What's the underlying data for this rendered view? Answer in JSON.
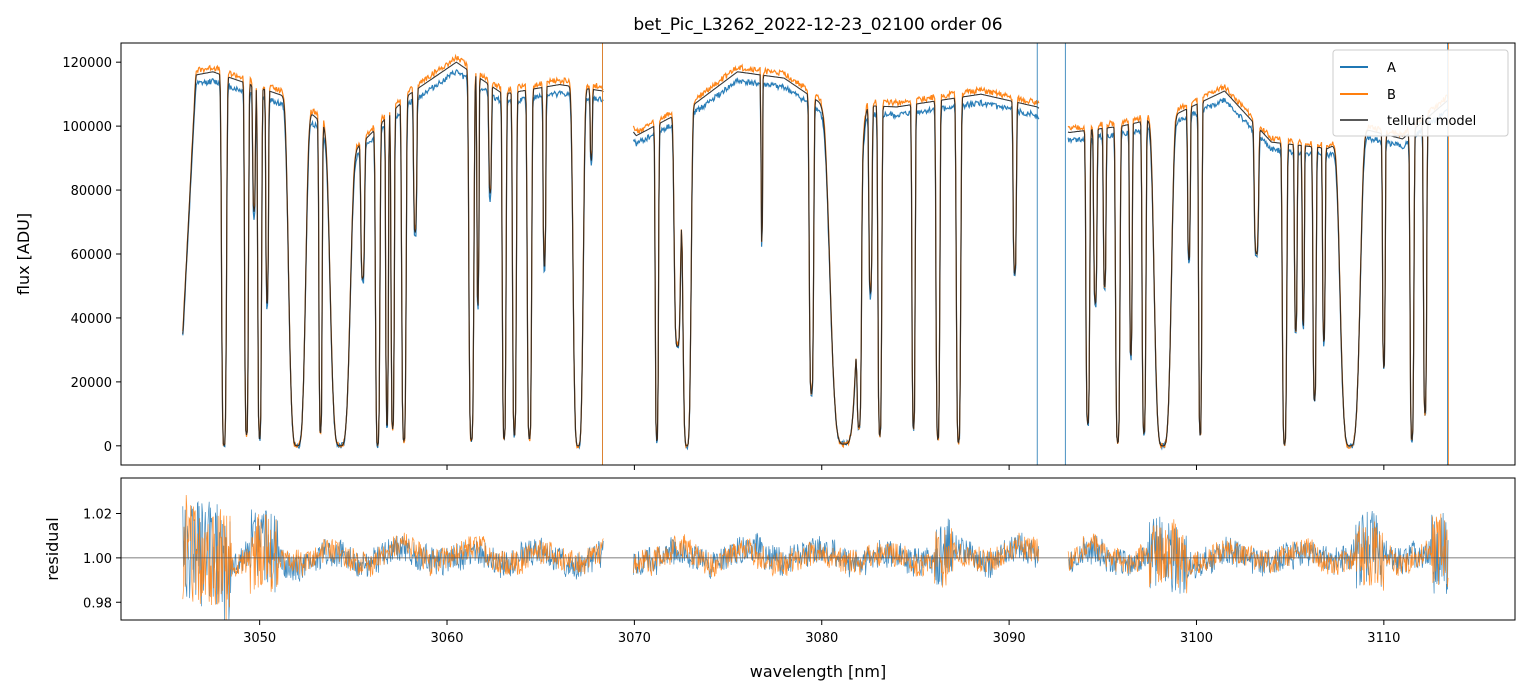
{
  "chart_data": [
    {
      "id": "flux",
      "type": "line",
      "title": "bet_Pic_L3262_2022-12-23_02100  order 06",
      "xlabel": "",
      "ylabel": "flux [ADU]",
      "xlim": [
        3042.6,
        3117.0
      ],
      "ylim": [
        -6000,
        126000
      ],
      "yticks": [
        0,
        20000,
        40000,
        60000,
        80000,
        100000,
        120000
      ],
      "ytick_labels": [
        "0",
        "20000",
        "40000",
        "60000",
        "80000",
        "100000",
        "120000"
      ],
      "xticks": [
        3050,
        3060,
        3070,
        3080,
        3090,
        3100,
        3110
      ],
      "legend_position": "top-right",
      "series": [
        {
          "name": "A",
          "color": "#1f77b4",
          "scale": 0.975,
          "noise": 900,
          "seed": 11
        },
        {
          "name": "B",
          "color": "#ff7f0e",
          "scale": 1.012,
          "noise": 900,
          "seed": 23
        },
        {
          "name": "telluric model",
          "color": "#222222",
          "scale": 1.0,
          "noise": 0,
          "seed": 0
        }
      ],
      "continuum": [
        [
          3045.9,
          35000
        ],
        [
          3046.6,
          116000
        ],
        [
          3047.5,
          117000
        ],
        [
          3052,
          108000
        ],
        [
          3055,
          92000
        ],
        [
          3058,
          110000
        ],
        [
          3060.5,
          120000
        ],
        [
          3063,
          110000
        ],
        [
          3066,
          113000
        ],
        [
          3068.3,
          111000
        ],
        [
          3070.1,
          97000
        ],
        [
          3073,
          106000
        ],
        [
          3075.5,
          117000
        ],
        [
          3078,
          115000
        ],
        [
          3080,
          107000
        ],
        [
          3084,
          106000
        ],
        [
          3088.5,
          110000
        ],
        [
          3091.5,
          106000
        ],
        [
          3093.2,
          98000
        ],
        [
          3096,
          100000
        ],
        [
          3099,
          104000
        ],
        [
          3101.5,
          111000
        ],
        [
          3104,
          95000
        ],
        [
          3107,
          93000
        ],
        [
          3109,
          99000
        ],
        [
          3111,
          96000
        ],
        [
          3113.4,
          108000
        ]
      ],
      "gaps": [
        [
          3068.35,
          3069.95
        ],
        [
          3091.6,
          3093.15
        ]
      ],
      "segments": [
        [
          3045.9,
          3068.35
        ],
        [
          3069.95,
          3091.6
        ],
        [
          3093.15,
          3113.45
        ]
      ],
      "absorption_lines": [
        [
          3048.1,
          0.09,
          0.999
        ],
        [
          3049.3,
          0.07,
          0.97
        ],
        [
          3049.7,
          0.05,
          0.35
        ],
        [
          3050.0,
          0.07,
          0.98
        ],
        [
          3050.4,
          0.05,
          0.6
        ],
        [
          3052.0,
          0.3,
          1.0
        ],
        [
          3053.25,
          0.06,
          0.96
        ],
        [
          3054.3,
          0.35,
          1.0
        ],
        [
          3055.5,
          0.07,
          0.45
        ],
        [
          3056.3,
          0.08,
          0.998
        ],
        [
          3056.8,
          0.05,
          0.94
        ],
        [
          3057.1,
          0.06,
          0.95
        ],
        [
          3057.7,
          0.08,
          0.985
        ],
        [
          3058.3,
          0.06,
          0.4
        ],
        [
          3061.3,
          0.09,
          0.985
        ],
        [
          3061.65,
          0.04,
          0.62
        ],
        [
          3062.3,
          0.05,
          0.3
        ],
        [
          3063.05,
          0.07,
          0.98
        ],
        [
          3063.6,
          0.07,
          0.97
        ],
        [
          3064.4,
          0.08,
          0.98
        ],
        [
          3065.2,
          0.05,
          0.5
        ],
        [
          3067.0,
          0.18,
          1.0
        ],
        [
          3067.7,
          0.04,
          0.2
        ],
        [
          3071.2,
          0.06,
          0.985
        ],
        [
          3072.3,
          0.12,
          0.7
        ],
        [
          3072.8,
          0.15,
          1.0
        ],
        [
          3076.8,
          0.03,
          0.45
        ],
        [
          3079.45,
          0.08,
          0.85
        ],
        [
          3081.2,
          0.5,
          0.995
        ],
        [
          3082.0,
          0.08,
          0.9
        ],
        [
          3082.6,
          0.06,
          0.55
        ],
        [
          3083.1,
          0.07,
          0.97
        ],
        [
          3084.9,
          0.06,
          0.95
        ],
        [
          3086.2,
          0.07,
          0.98
        ],
        [
          3087.3,
          0.08,
          0.99
        ],
        [
          3090.3,
          0.06,
          0.5
        ],
        [
          3094.2,
          0.07,
          0.93
        ],
        [
          3094.6,
          0.06,
          0.55
        ],
        [
          3095.1,
          0.05,
          0.5
        ],
        [
          3095.8,
          0.08,
          0.99
        ],
        [
          3096.5,
          0.05,
          0.72
        ],
        [
          3097.2,
          0.07,
          0.96
        ],
        [
          3098.2,
          0.3,
          1.0
        ],
        [
          3099.6,
          0.05,
          0.45
        ],
        [
          3100.2,
          0.06,
          0.97
        ],
        [
          3103.2,
          0.08,
          0.4
        ],
        [
          3104.7,
          0.08,
          0.995
        ],
        [
          3105.3,
          0.05,
          0.62
        ],
        [
          3105.7,
          0.04,
          0.6
        ],
        [
          3106.3,
          0.06,
          0.85
        ],
        [
          3106.8,
          0.05,
          0.65
        ],
        [
          3108.2,
          0.35,
          1.0
        ],
        [
          3110.0,
          0.05,
          0.75
        ],
        [
          3111.5,
          0.07,
          0.98
        ],
        [
          3112.2,
          0.06,
          0.9
        ]
      ]
    },
    {
      "id": "residual",
      "type": "line",
      "title": "",
      "xlabel": "wavelength [nm]",
      "ylabel": "residual",
      "xlim": [
        3042.6,
        3117.0
      ],
      "ylim": [
        0.972,
        1.036
      ],
      "yticks": [
        0.98,
        1.0,
        1.02
      ],
      "ytick_labels": [
        "0.98",
        "1.00",
        "1.02"
      ],
      "xticks": [
        3050,
        3060,
        3070,
        3080,
        3090,
        3100,
        3110
      ],
      "xtick_labels": [
        "3050",
        "3060",
        "3070",
        "3080",
        "3090",
        "3100",
        "3110"
      ],
      "reference_line": 1.0,
      "series": [
        {
          "name": "A",
          "color": "#1f77b4",
          "amplitude": 0.0062,
          "seed": 5
        },
        {
          "name": "B",
          "color": "#ff7f0e",
          "amplitude": 0.0055,
          "seed": 9
        }
      ],
      "noisy_regions": [
        [
          3045.9,
          3048.5,
          0.02
        ],
        [
          3049.5,
          3051.0,
          0.012
        ],
        [
          3086.0,
          3087.0,
          0.008
        ],
        [
          3097.5,
          3099.5,
          0.01
        ],
        [
          3108.5,
          3110.0,
          0.01
        ],
        [
          3112.5,
          3113.5,
          0.012
        ]
      ]
    }
  ]
}
